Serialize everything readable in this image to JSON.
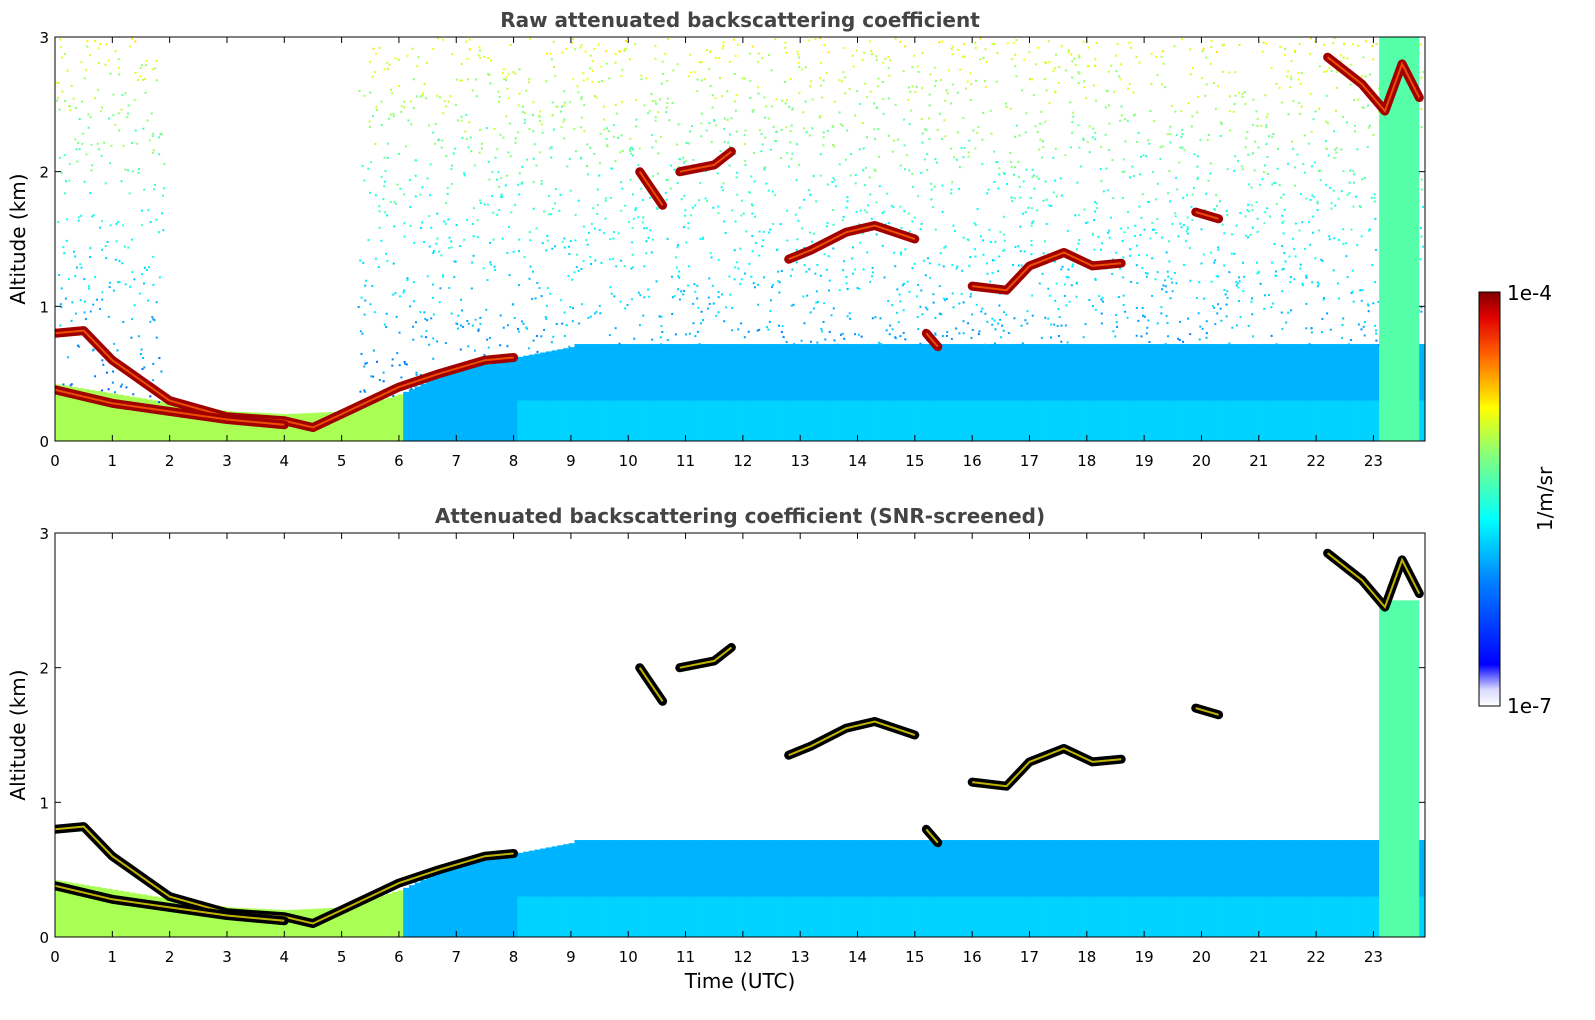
{
  "chart_data": [
    {
      "type": "heatmap",
      "title": "Raw attenuated backscattering coefficient",
      "ylabel": "Altitude (km)",
      "xlabel": "",
      "xlim": [
        0,
        23.9
      ],
      "ylim": [
        0,
        3
      ],
      "xticks": [
        "0",
        "1",
        "2",
        "3",
        "4",
        "5",
        "6",
        "7",
        "8",
        "9",
        "10",
        "11",
        "12",
        "13",
        "14",
        "15",
        "16",
        "17",
        "18",
        "19",
        "20",
        "21",
        "22",
        "23"
      ],
      "yticks": [
        "0",
        "1",
        "2",
        "3"
      ],
      "screened": false,
      "features": [
        {
          "kind": "surface_aerosol",
          "top_km_by_hour": [
            [
              0,
              0.42
            ],
            [
              1,
              0.35
            ],
            [
              2,
              0.28
            ],
            [
              3,
              0.22
            ],
            [
              4,
              0.2
            ],
            [
              5,
              0.22
            ],
            [
              6,
              0.35
            ],
            [
              7,
              0.55
            ],
            [
              8,
              0.62
            ],
            [
              9,
              0.7
            ]
          ]
        },
        {
          "kind": "cloud_layer",
          "points": [
            [
              0,
              0.8
            ],
            [
              0.5,
              0.82
            ],
            [
              1,
              0.6
            ],
            [
              1.5,
              0.45
            ],
            [
              2,
              0.3
            ],
            [
              3,
              0.18
            ],
            [
              4,
              0.15
            ],
            [
              4.5,
              0.1
            ],
            [
              5,
              0.2
            ],
            [
              6,
              0.4
            ],
            [
              6.7,
              0.5
            ],
            [
              7.5,
              0.6
            ],
            [
              8,
              0.62
            ]
          ]
        },
        {
          "kind": "cloud_layer",
          "points": [
            [
              0,
              0.38
            ],
            [
              1,
              0.28
            ],
            [
              2,
              0.22
            ],
            [
              3,
              0.16
            ],
            [
              4,
              0.12
            ]
          ]
        },
        {
          "kind": "cloud_layer",
          "points": [
            [
              10.2,
              2.0
            ],
            [
              10.6,
              1.75
            ]
          ]
        },
        {
          "kind": "cloud_layer",
          "points": [
            [
              10.9,
              2.0
            ],
            [
              11.5,
              2.05
            ],
            [
              11.8,
              2.15
            ]
          ]
        },
        {
          "kind": "cloud_layer",
          "points": [
            [
              12.8,
              1.35
            ],
            [
              13.2,
              1.42
            ],
            [
              13.8,
              1.55
            ],
            [
              14.3,
              1.6
            ],
            [
              15.0,
              1.5
            ]
          ]
        },
        {
          "kind": "cloud_layer",
          "points": [
            [
              15.2,
              0.8
            ],
            [
              15.4,
              0.7
            ]
          ]
        },
        {
          "kind": "cloud_layer",
          "points": [
            [
              16,
              1.15
            ],
            [
              16.6,
              1.12
            ],
            [
              17.0,
              1.3
            ],
            [
              17.6,
              1.4
            ],
            [
              18.1,
              1.3
            ],
            [
              18.6,
              1.32
            ]
          ]
        },
        {
          "kind": "cloud_layer",
          "points": [
            [
              19.9,
              1.7
            ],
            [
              20.3,
              1.65
            ]
          ]
        },
        {
          "kind": "cloud_layer",
          "points": [
            [
              22.2,
              2.85
            ],
            [
              22.8,
              2.65
            ],
            [
              23.2,
              2.45
            ],
            [
              23.5,
              2.8
            ],
            [
              23.8,
              2.55
            ]
          ]
        },
        {
          "kind": "precip_column",
          "x_range": [
            23.1,
            23.8
          ]
        }
      ]
    },
    {
      "type": "heatmap",
      "title": "Attenuated backscattering coefficient (SNR-screened)",
      "ylabel": "Altitude (km)",
      "xlabel": "Time (UTC)",
      "xlim": [
        0,
        23.9
      ],
      "ylim": [
        0,
        3
      ],
      "xticks": [
        "0",
        "1",
        "2",
        "3",
        "4",
        "5",
        "6",
        "7",
        "8",
        "9",
        "10",
        "11",
        "12",
        "13",
        "14",
        "15",
        "16",
        "17",
        "18",
        "19",
        "20",
        "21",
        "22",
        "23"
      ],
      "yticks": [
        "0",
        "1",
        "2",
        "3"
      ],
      "screened": true
    }
  ],
  "colorbar": {
    "label": "1/m/sr",
    "max_label": "1e-4",
    "min_label": "1e-7",
    "scale": "log",
    "colormap": "jet",
    "range": [
      1e-07,
      0.0001
    ]
  }
}
